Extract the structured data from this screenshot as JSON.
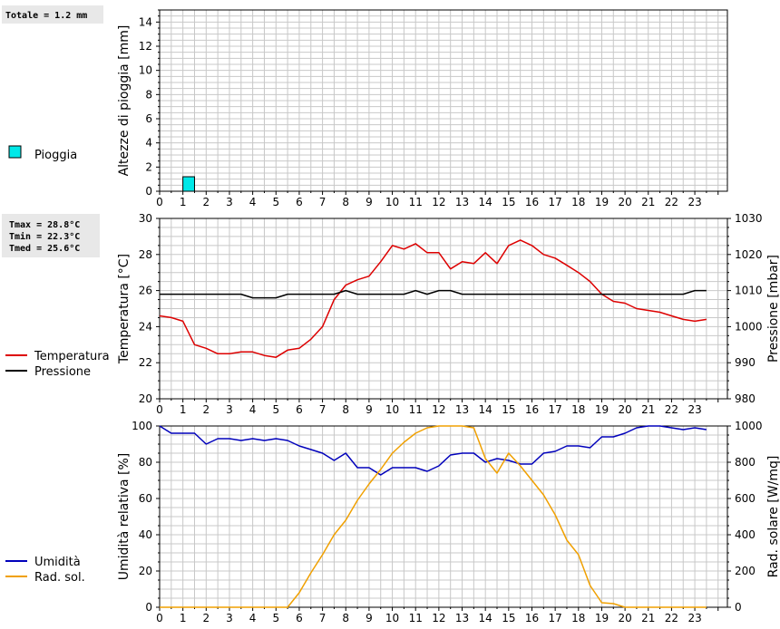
{
  "hours": [
    "0",
    "1",
    "2",
    "3",
    "4",
    "5",
    "6",
    "7",
    "8",
    "9",
    "10",
    "11",
    "12",
    "13",
    "14",
    "15",
    "16",
    "17",
    "18",
    "19",
    "20",
    "21",
    "22",
    "23"
  ],
  "info": {
    "rain_total": "Totale = 1.2 mm",
    "tmax": "Tmax = 28.8°C",
    "tmin": "Tmin = 22.3°C",
    "tmed": "Tmed = 25.6°C"
  },
  "colors": {
    "rain": "#00e8e8",
    "temperature": "#dd0000",
    "pressure": "#000000",
    "humidity": "#0000bb",
    "solar": "#f0a000",
    "grid": "#c8c8c8"
  },
  "chart_data": [
    {
      "type": "bar",
      "ylabel": "Altezze di pioggia [mm]",
      "ylim": [
        0,
        15
      ],
      "yticks": [
        "0",
        "2",
        "4",
        "6",
        "8",
        "10",
        "12",
        "14"
      ],
      "xlim": [
        0,
        24.4
      ],
      "grid": true,
      "legend": [
        {
          "name": "Pioggia",
          "color": "#00e8e8"
        }
      ],
      "series": [
        {
          "name": "Pioggia",
          "bars": [
            {
              "x_start": 1.0,
              "x_end": 1.5,
              "value": 1.2
            }
          ]
        }
      ]
    },
    {
      "type": "line",
      "ylabel": "Temperatura [°C]",
      "ylim": [
        20,
        30
      ],
      "yticks": [
        "20",
        "22",
        "24",
        "26",
        "28",
        "30"
      ],
      "y2label": "Pressione [mbar]",
      "y2lim": [
        980,
        1030
      ],
      "y2ticks": [
        "980",
        "990",
        "1000",
        "1010",
        "1020",
        "1030"
      ],
      "xlim": [
        0,
        24.4
      ],
      "grid": true,
      "series": [
        {
          "name": "Temperatura",
          "axis": "left",
          "color": "#dd0000",
          "x": [
            0,
            0.5,
            1,
            1.5,
            2,
            2.5,
            3,
            3.5,
            4,
            4.5,
            5,
            5.5,
            6,
            6.5,
            7,
            7.5,
            8,
            8.5,
            9,
            9.5,
            10,
            10.5,
            11,
            11.5,
            12,
            12.5,
            13,
            13.5,
            14,
            14.5,
            15,
            15.5,
            16,
            16.5,
            17,
            17.5,
            18,
            18.5,
            19,
            19.5,
            20,
            20.5,
            21,
            21.5,
            22,
            22.5,
            23,
            23.5
          ],
          "y": [
            24.6,
            24.5,
            24.3,
            23.0,
            22.8,
            22.5,
            22.5,
            22.6,
            22.6,
            22.4,
            22.3,
            22.7,
            22.8,
            23.3,
            24.0,
            25.5,
            26.3,
            26.6,
            26.8,
            27.6,
            28.5,
            28.3,
            28.6,
            28.1,
            28.1,
            27.2,
            27.6,
            27.5,
            28.1,
            27.5,
            28.5,
            28.8,
            28.5,
            28.0,
            27.8,
            27.4,
            27.0,
            26.5,
            25.8,
            25.4,
            25.3,
            25.0,
            24.9,
            24.8,
            24.6,
            24.4,
            24.3,
            24.4
          ]
        },
        {
          "name": "Pressione",
          "axis": "right",
          "color": "#000000",
          "x": [
            0,
            0.5,
            1,
            1.5,
            2,
            2.5,
            3,
            3.5,
            4,
            4.5,
            5,
            5.5,
            6,
            6.5,
            7,
            7.5,
            8,
            8.5,
            9,
            9.5,
            10,
            10.5,
            11,
            11.5,
            12,
            12.5,
            13,
            13.5,
            14,
            14.5,
            15,
            15.5,
            16,
            16.5,
            17,
            17.5,
            18,
            18.5,
            19,
            19.5,
            20,
            20.5,
            21,
            21.5,
            22,
            22.5,
            23,
            23.5
          ],
          "y": [
            1009,
            1009,
            1009,
            1009,
            1009,
            1009,
            1009,
            1009,
            1008,
            1008,
            1008,
            1009,
            1009,
            1009,
            1009,
            1009,
            1010,
            1009,
            1009,
            1009,
            1009,
            1009,
            1010,
            1009,
            1010,
            1010,
            1009,
            1009,
            1009,
            1009,
            1009,
            1009,
            1009,
            1009,
            1009,
            1009,
            1009,
            1009,
            1009,
            1009,
            1009,
            1009,
            1009,
            1009,
            1009,
            1009,
            1010,
            1010
          ]
        }
      ]
    },
    {
      "type": "line",
      "ylabel": "Umidità relativa [%]",
      "ylim": [
        0,
        100
      ],
      "yticks": [
        "0",
        "20",
        "40",
        "60",
        "80",
        "100"
      ],
      "y2label": "Rad. solare [W/mq]",
      "y2lim": [
        0,
        1000
      ],
      "y2ticks": [
        "0",
        "200",
        "400",
        "600",
        "800",
        "1000"
      ],
      "xlim": [
        0,
        24.4
      ],
      "grid": true,
      "series": [
        {
          "name": "Umidità",
          "axis": "left",
          "color": "#0000bb",
          "x": [
            0,
            0.5,
            1,
            1.5,
            2,
            2.5,
            3,
            3.5,
            4,
            4.5,
            5,
            5.5,
            6,
            6.5,
            7,
            7.5,
            8,
            8.5,
            9,
            9.5,
            10,
            10.5,
            11,
            11.5,
            12,
            12.5,
            13,
            13.5,
            14,
            14.5,
            15,
            15.5,
            16,
            16.5,
            17,
            17.5,
            18,
            18.5,
            19,
            19.5,
            20,
            20.5,
            21,
            21.5,
            22,
            22.5,
            23,
            23.5
          ],
          "y": [
            100,
            96,
            96,
            96,
            90,
            93,
            93,
            92,
            93,
            92,
            93,
            92,
            89,
            87,
            85,
            81,
            85,
            77,
            77,
            73,
            77,
            77,
            77,
            75,
            78,
            84,
            85,
            85,
            80,
            82,
            81,
            79,
            79,
            85,
            86,
            89,
            89,
            88,
            94,
            94,
            96,
            99,
            100,
            100,
            99,
            98,
            99,
            98
          ]
        },
        {
          "name": "Rad. sol.",
          "axis": "right",
          "color": "#f0a000",
          "x": [
            0,
            0.5,
            1,
            1.5,
            2,
            2.5,
            3,
            3.5,
            4,
            4.5,
            5,
            5.5,
            6,
            6.5,
            7,
            7.5,
            8,
            8.5,
            9,
            9.5,
            10,
            10.5,
            11,
            11.5,
            12,
            12.5,
            13,
            13.5,
            14,
            14.5,
            15,
            15.5,
            16,
            16.5,
            17,
            17.5,
            18,
            18.5,
            19,
            19.5,
            20,
            20.5,
            21,
            21.5,
            22,
            22.5,
            23,
            23.5
          ],
          "y": [
            0,
            0,
            0,
            0,
            0,
            0,
            0,
            0,
            0,
            0,
            0,
            0,
            80,
            190,
            290,
            400,
            480,
            590,
            680,
            760,
            850,
            910,
            960,
            990,
            1000,
            1000,
            1000,
            990,
            820,
            740,
            850,
            780,
            700,
            620,
            510,
            370,
            290,
            120,
            25,
            20,
            0,
            0,
            0,
            0,
            0,
            0,
            0,
            0
          ]
        }
      ]
    }
  ]
}
